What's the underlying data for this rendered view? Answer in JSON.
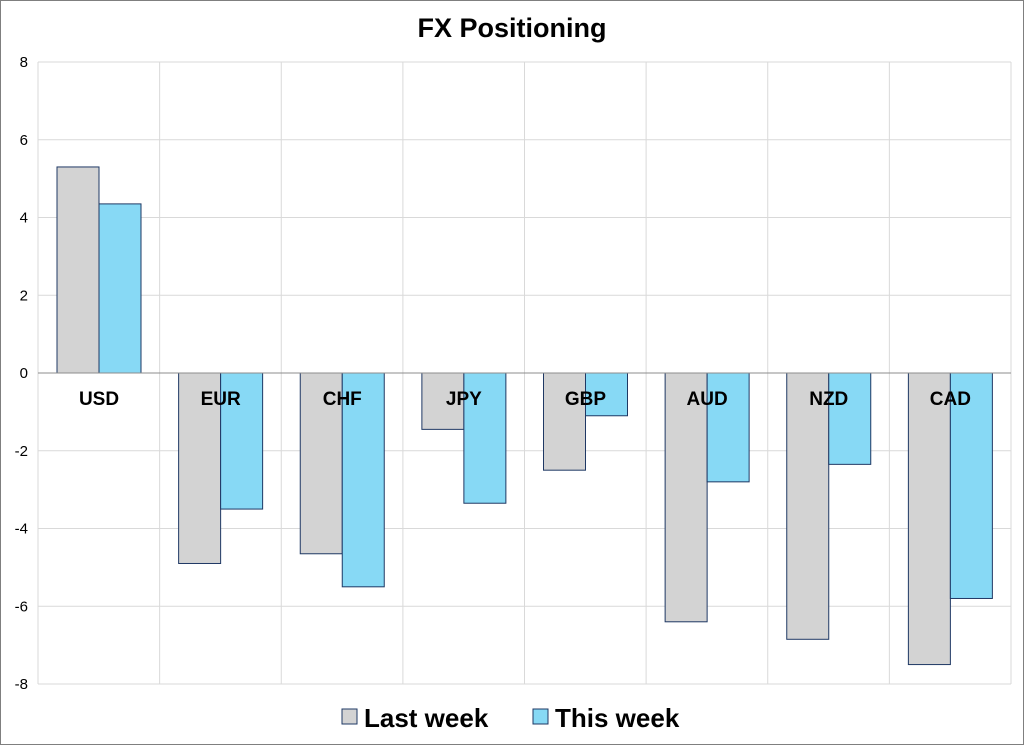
{
  "chart_data": {
    "type": "bar",
    "title": "FX Positioning",
    "xlabel": "",
    "ylabel": "",
    "categories": [
      "USD",
      "EUR",
      "CHF",
      "JPY",
      "GBP",
      "AUD",
      "NZD",
      "CAD"
    ],
    "series": [
      {
        "name": "Last week",
        "color": "#d3d3d3",
        "values": [
          5.3,
          -4.9,
          -4.65,
          -1.45,
          -2.5,
          -6.4,
          -6.85,
          -7.5
        ]
      },
      {
        "name": "This week",
        "color": "#87d9f5",
        "values": [
          4.35,
          -3.5,
          -5.5,
          -3.35,
          -1.1,
          -2.8,
          -2.35,
          -5.8
        ]
      }
    ],
    "ylim": [
      -8,
      8
    ],
    "yticks": [
      "8",
      "6",
      "4",
      "2",
      "0",
      "-2",
      "-4",
      "-6",
      "-8"
    ],
    "grid": true,
    "legend_position": "bottom"
  }
}
